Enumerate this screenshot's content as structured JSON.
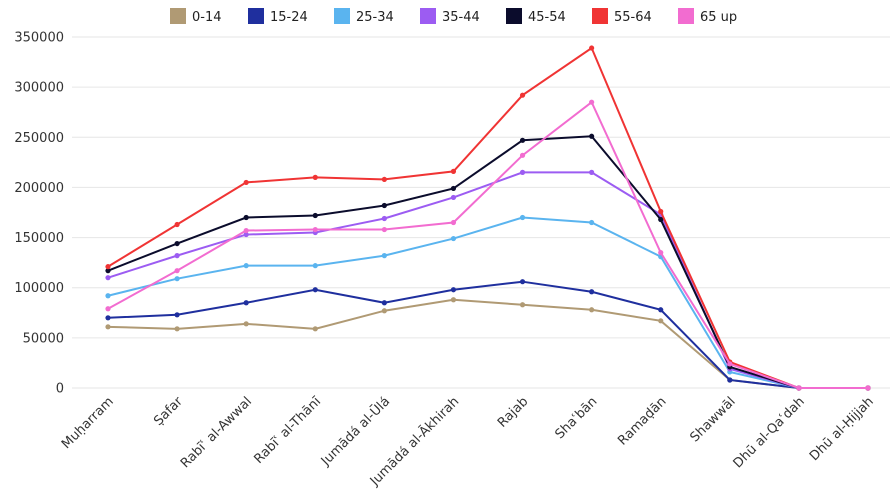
{
  "chart_data": {
    "type": "line",
    "title": "",
    "xlabel": "",
    "ylabel": "",
    "ylim": [
      0,
      350000
    ],
    "yticks": [
      0,
      50000,
      100000,
      150000,
      200000,
      250000,
      300000,
      350000
    ],
    "grid": true,
    "legend_position": "top",
    "categories": [
      "Muḥarram",
      "Ṣafar",
      "Rabīʿ al-Awwal",
      "Rabīʿ al-Thānī",
      "Jumādá al-Ūlá",
      "Jumādá al-Ākhirah",
      "Rajab",
      "Shaʿbān",
      "Ramaḍān",
      "Shawwāl",
      "Dhū al-Qaʿdah",
      "Dhū al-Ḥijjah"
    ],
    "series": [
      {
        "name": "0-14",
        "color": "#b09a74",
        "values": [
          61000,
          59000,
          64000,
          59000,
          77000,
          88000,
          83000,
          78000,
          67000,
          8000,
          0,
          0
        ]
      },
      {
        "name": "15-24",
        "color": "#1f2f9e",
        "values": [
          70000,
          73000,
          85000,
          98000,
          85000,
          98000,
          106000,
          96000,
          78000,
          8000,
          0,
          0
        ]
      },
      {
        "name": "25-34",
        "color": "#5ab4ef",
        "values": [
          92000,
          109000,
          122000,
          122000,
          132000,
          149000,
          170000,
          165000,
          131000,
          16000,
          0,
          0
        ]
      },
      {
        "name": "35-44",
        "color": "#9c5cf2",
        "values": [
          110000,
          132000,
          153000,
          155000,
          169000,
          190000,
          215000,
          215000,
          173000,
          19000,
          0,
          0
        ]
      },
      {
        "name": "45-54",
        "color": "#0b0c2c",
        "values": [
          117000,
          144000,
          170000,
          172000,
          182000,
          199000,
          247000,
          251000,
          168000,
          21000,
          0,
          0
        ]
      },
      {
        "name": "55-64",
        "color": "#f03434",
        "values": [
          121000,
          163000,
          205000,
          210000,
          208000,
          216000,
          292000,
          339000,
          176000,
          26000,
          0,
          0
        ]
      },
      {
        "name": "65 up",
        "color": "#f26cd0",
        "values": [
          79000,
          117000,
          157000,
          158000,
          158000,
          165000,
          232000,
          285000,
          135000,
          24000,
          0,
          0
        ]
      }
    ]
  }
}
